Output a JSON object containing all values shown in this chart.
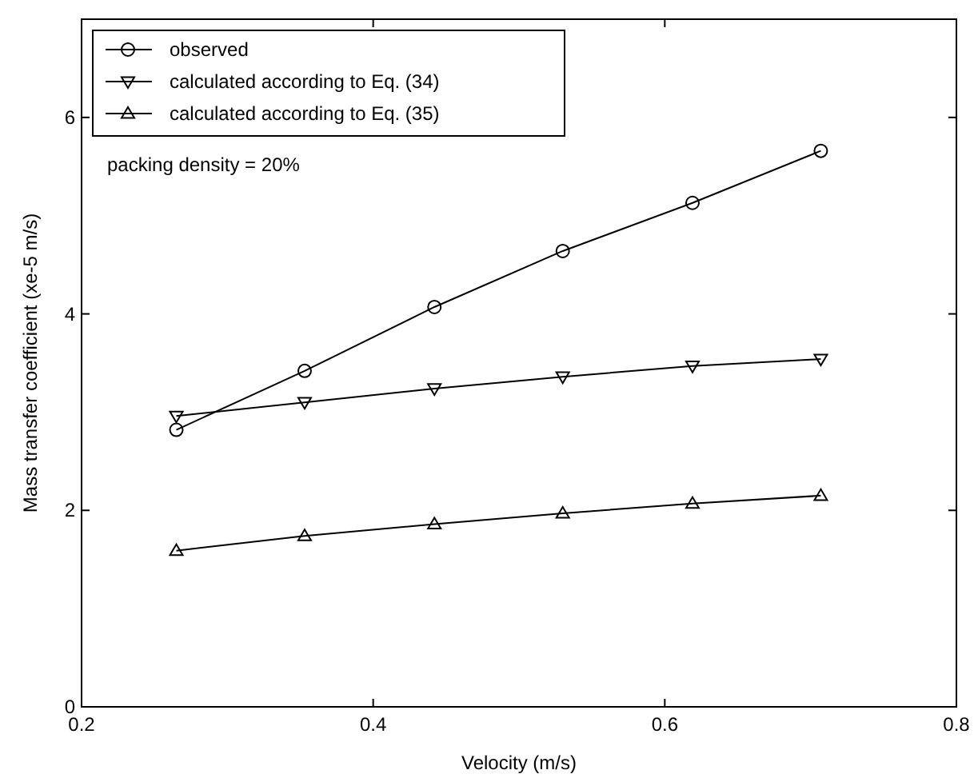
{
  "chart_data": {
    "type": "line",
    "xlabel": "Velocity (m/s)",
    "ylabel": "Mass transfer coefficient (xe-5 m/s)",
    "x": [
      0.265,
      0.353,
      0.442,
      0.53,
      0.619,
      0.707
    ],
    "series": [
      {
        "name": "observed",
        "color": "#000000",
        "marker": "circle",
        "values": [
          2.82,
          3.42,
          4.07,
          4.64,
          5.13,
          5.66
        ]
      },
      {
        "name": "calculated according to Eq. (34)",
        "color": "#000000",
        "marker": "triangle-down",
        "values": [
          2.96,
          3.1,
          3.24,
          3.36,
          3.47,
          3.54
        ]
      },
      {
        "name": "calculated according to Eq. (35)",
        "color": "#000000",
        "marker": "triangle",
        "values": [
          1.59,
          1.74,
          1.86,
          1.97,
          2.07,
          2.15
        ]
      }
    ],
    "xlim": [
      0.2,
      0.8
    ],
    "xticks": [
      0.2,
      0.4,
      0.6,
      0.8
    ],
    "ylim": [
      0,
      7
    ],
    "yticks": [
      0,
      2,
      4,
      6
    ],
    "legend": "top left",
    "grid": false,
    "line_style": "solid",
    "annotations": [
      "packing density = 20%"
    ]
  }
}
